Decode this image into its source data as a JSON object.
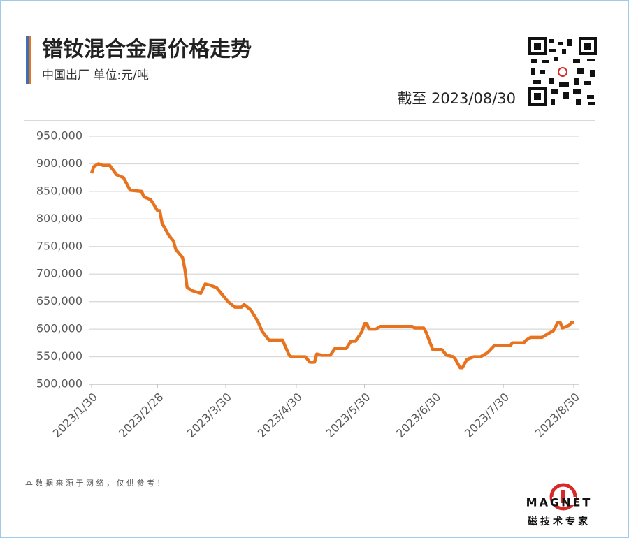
{
  "title": "镨钕混合金属价格走势",
  "subtitle": "中国出厂  单位:元/吨",
  "as_of": "截至 2023/08/30",
  "source_note": "本 数 据 来 源 于 网 络 ， 仅 供 参 考 ！",
  "brand": "MAGNET",
  "brand_tagline": "磁技术专家",
  "chart_data": {
    "type": "line",
    "grid": true,
    "x": [
      "2023/1/30",
      "2023/1/31",
      "2023/2/2",
      "2023/2/4",
      "2023/2/7",
      "2023/2/10",
      "2023/2/13",
      "2023/2/16",
      "2023/2/21",
      "2023/2/22",
      "2023/2/25",
      "2023/2/28",
      "2023/3/1",
      "2023/3/2",
      "2023/3/5",
      "2023/3/7",
      "2023/3/8",
      "2023/3/11",
      "2023/3/12",
      "2023/3/13",
      "2023/3/15",
      "2023/3/19",
      "2023/3/21",
      "2023/3/23",
      "2023/3/26",
      "2023/3/29",
      "2023/3/31",
      "2023/4/3",
      "2023/4/6",
      "2023/4/7",
      "2023/4/10",
      "2023/4/13",
      "2023/4/15",
      "2023/4/18",
      "2023/4/24",
      "2023/4/25",
      "2023/4/27",
      "2023/4/28",
      "2023/5/4",
      "2023/5/6",
      "2023/5/8",
      "2023/5/9",
      "2023/5/11",
      "2023/5/15",
      "2023/5/17",
      "2023/5/22",
      "2023/5/24",
      "2023/5/26",
      "2023/5/28",
      "2023/5/29",
      "2023/5/30",
      "2023/5/31",
      "2023/6/1",
      "2023/6/4",
      "2023/6/6",
      "2023/6/20",
      "2023/6/21",
      "2023/6/25",
      "2023/6/26",
      "2023/6/29",
      "2023/7/3",
      "2023/7/5",
      "2023/7/8",
      "2023/7/9",
      "2023/7/11",
      "2023/7/12",
      "2023/7/14",
      "2023/7/17",
      "2023/7/20",
      "2023/7/23",
      "2023/7/26",
      "2023/8/2",
      "2023/8/3",
      "2023/8/8",
      "2023/8/9",
      "2023/8/11",
      "2023/8/16",
      "2023/8/18",
      "2023/8/21",
      "2023/8/23",
      "2023/8/24",
      "2023/8/25",
      "2023/8/28",
      "2023/8/29",
      "2023/8/30"
    ],
    "series": [
      {
        "name": "镨钕混合金属",
        "color": "#e8731f",
        "values": [
          883000,
          895000,
          900000,
          897000,
          897000,
          880000,
          875000,
          852000,
          850000,
          840000,
          835000,
          815000,
          815000,
          792000,
          770000,
          760000,
          745000,
          730000,
          710000,
          676000,
          670000,
          665000,
          682000,
          680000,
          675000,
          660000,
          650000,
          640000,
          640000,
          645000,
          635000,
          615000,
          596000,
          580000,
          580000,
          570000,
          552000,
          550000,
          550000,
          540000,
          540000,
          555000,
          553000,
          553000,
          565000,
          565000,
          578000,
          578000,
          590000,
          597000,
          610000,
          610000,
          600000,
          600000,
          605000,
          605000,
          602000,
          602000,
          595000,
          563000,
          563000,
          553000,
          550000,
          545000,
          530000,
          530000,
          545000,
          550000,
          550000,
          557000,
          570000,
          570000,
          575000,
          575000,
          580000,
          585000,
          585000,
          590000,
          597000,
          612000,
          612000,
          602000,
          607000,
          612000,
          612000
        ]
      }
    ],
    "xlim": [
      "2023/1/30",
      "2023/8/30"
    ],
    "xticks": [
      "2023/1/30",
      "2023/2/28",
      "2023/3/30",
      "2023/4/30",
      "2023/5/30",
      "2023/6/30",
      "2023/7/30",
      "2023/8/30"
    ],
    "ylim": [
      500000,
      950000
    ],
    "yticks": [
      {
        "value": 500000,
        "label": "500,000"
      },
      {
        "value": 550000,
        "label": "550,000"
      },
      {
        "value": 600000,
        "label": "600,000"
      },
      {
        "value": 650000,
        "label": "650,000"
      },
      {
        "value": 700000,
        "label": "700,000"
      },
      {
        "value": 750000,
        "label": "750,000"
      },
      {
        "value": 800000,
        "label": "800,000"
      },
      {
        "value": 850000,
        "label": "850,000"
      },
      {
        "value": 900000,
        "label": "900,000"
      },
      {
        "value": 950000,
        "label": "950,000"
      }
    ]
  }
}
